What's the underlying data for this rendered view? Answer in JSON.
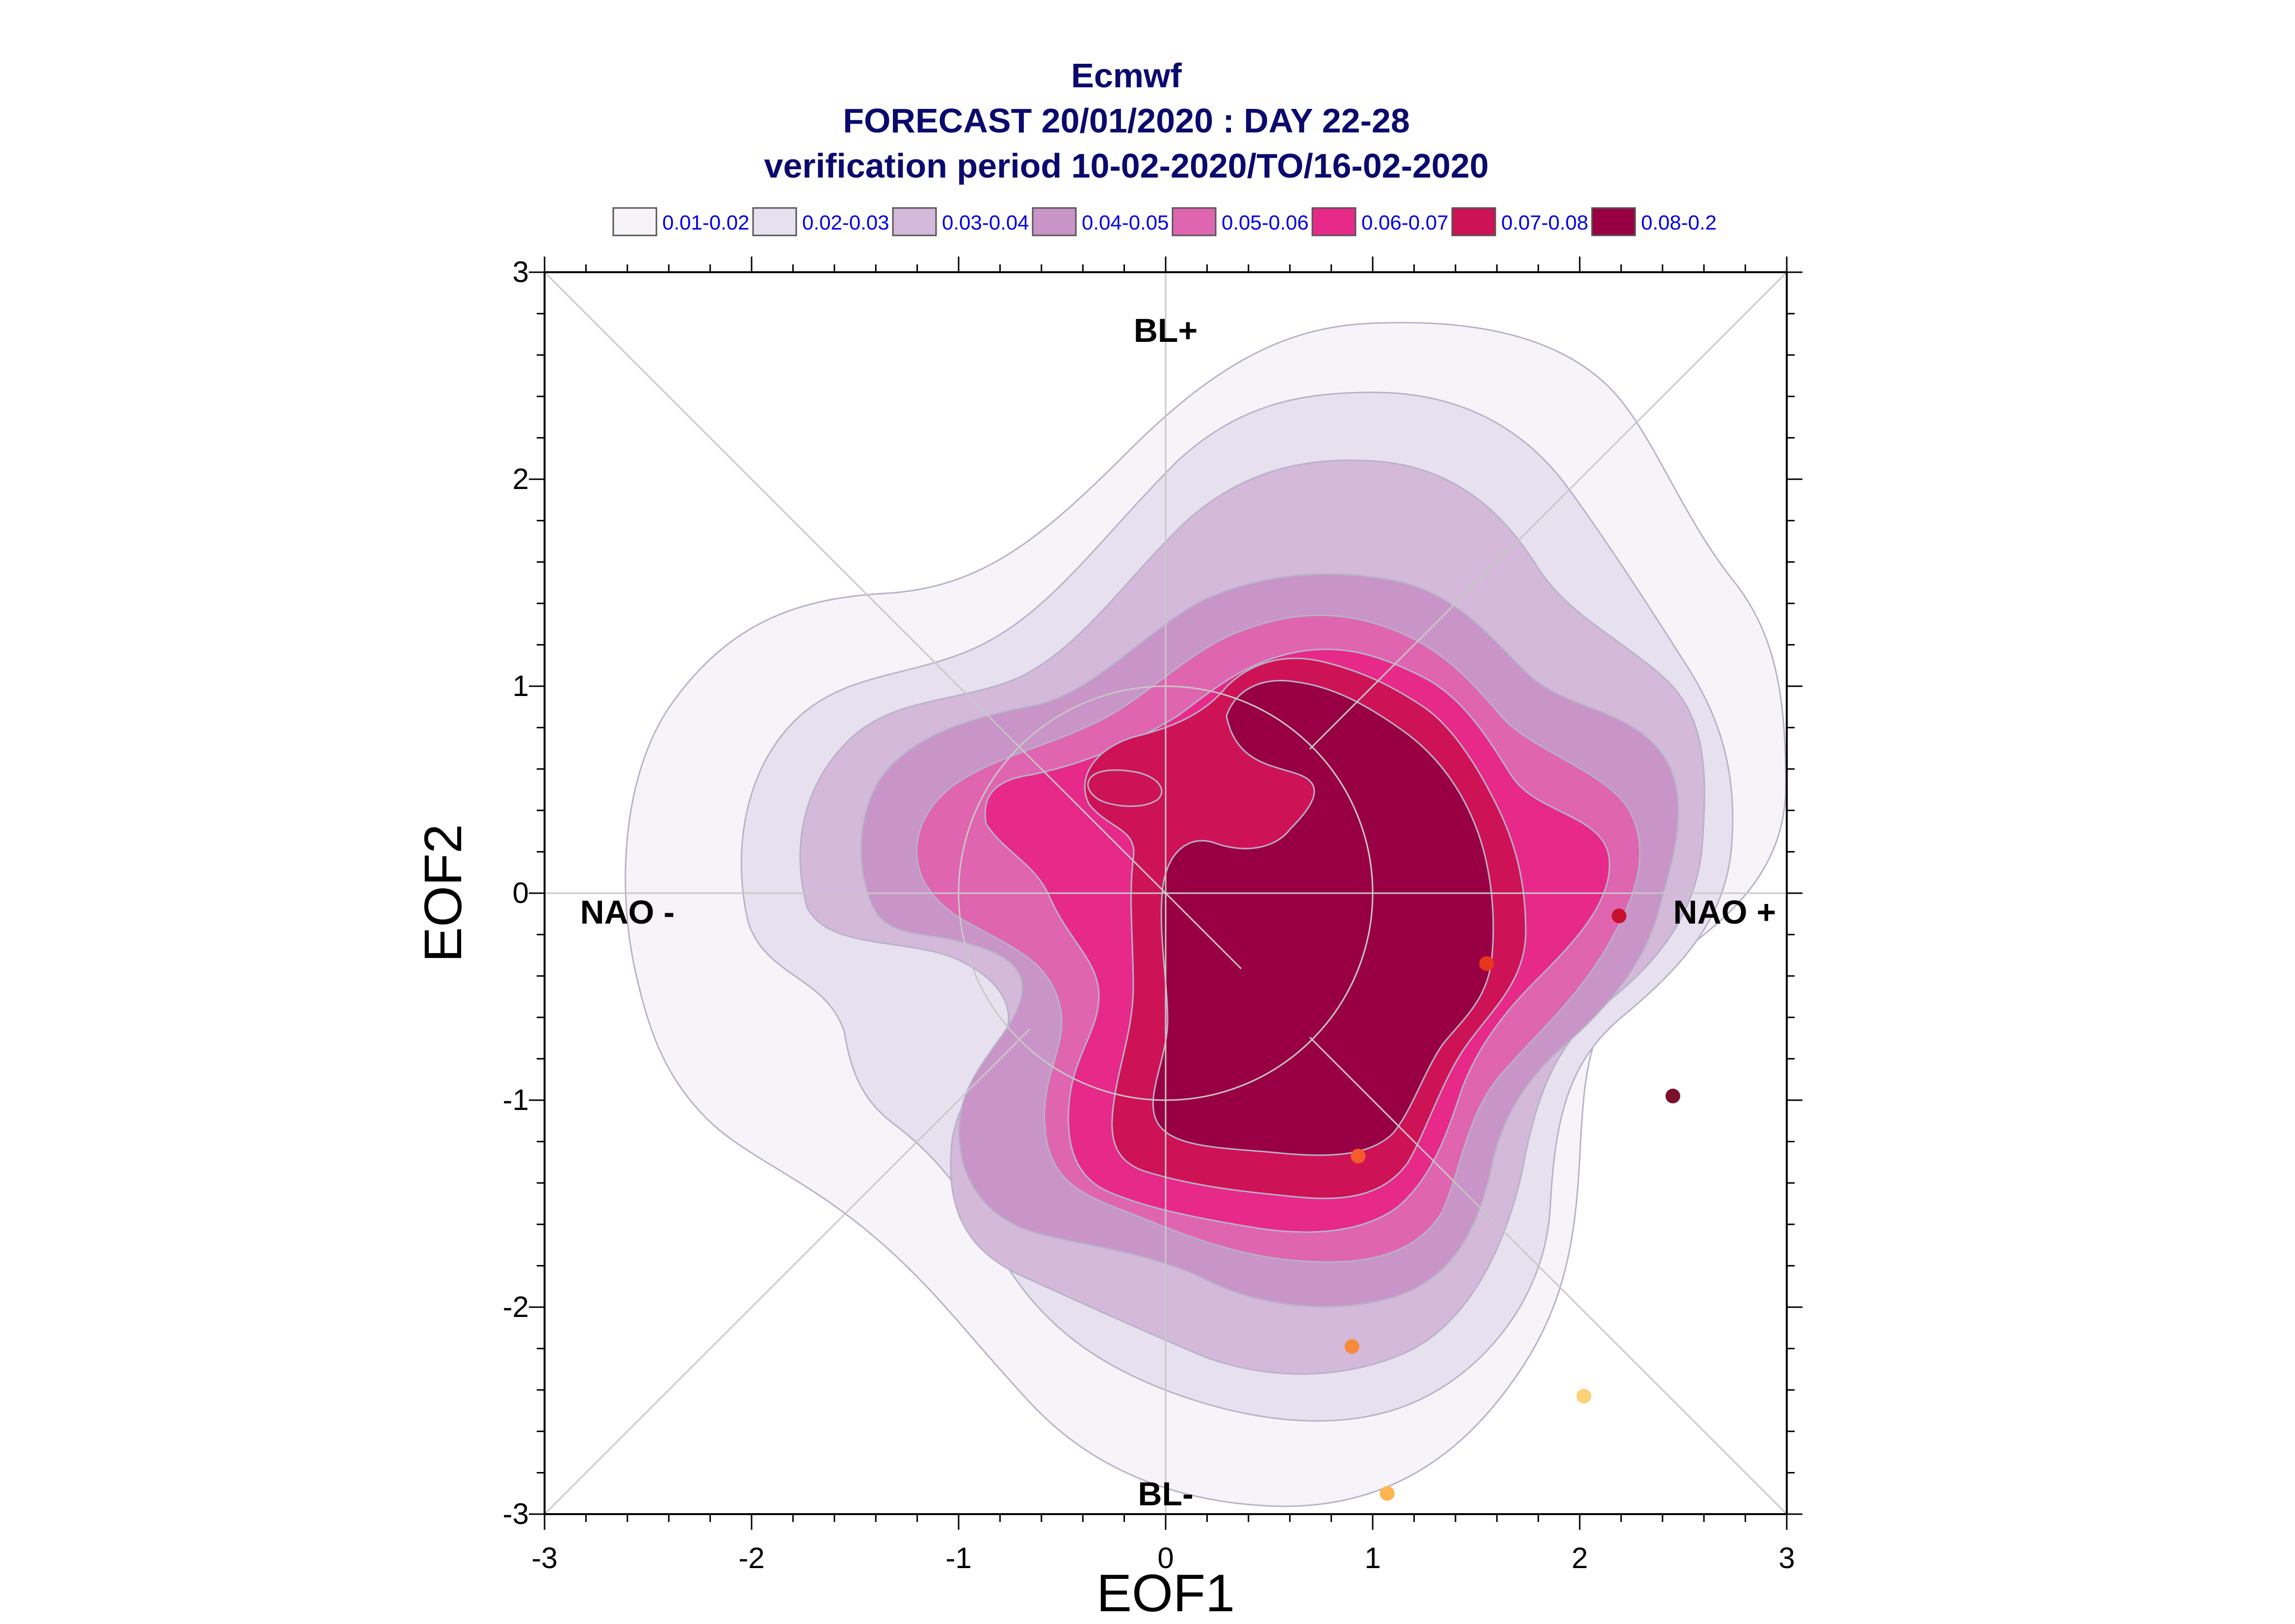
{
  "chart_data": {
    "type": "contour",
    "title_lines": [
      "Ecmwf",
      "FORECAST 20/01/2020 : DAY 22-28",
      "verification period 10-02-2020/TO/16-02-2020"
    ],
    "xlabel": "EOF1",
    "ylabel": "EOF2",
    "xlim": [
      -3,
      3
    ],
    "ylim": [
      -3,
      3
    ],
    "x_ticks": [
      "-3",
      "-2",
      "-1",
      "0",
      "1",
      "2",
      "3"
    ],
    "y_ticks": [
      "-3",
      "-2",
      "-1",
      "0",
      "1",
      "2",
      "3"
    ],
    "grid": false,
    "legend_position": "top",
    "legend": [
      {
        "label": "0.01-0.02",
        "color": "#f7f4f9"
      },
      {
        "label": "0.02-0.03",
        "color": "#e7e1ef"
      },
      {
        "label": "0.03-0.04",
        "color": "#d4b9da"
      },
      {
        "label": "0.04-0.05",
        "color": "#c994c7"
      },
      {
        "label": "0.05-0.06",
        "color": "#df65b0"
      },
      {
        "label": "0.06-0.07",
        "color": "#e7298a"
      },
      {
        "label": "0.07-0.08",
        "color": "#ce1256"
      },
      {
        "label": "0.08-0.2",
        "color": "#980043"
      }
    ],
    "regimes": [
      {
        "label": "BL+",
        "x": 0.0,
        "y": 2.72
      },
      {
        "label": "NAO -",
        "x": -2.6,
        "y": -0.09
      },
      {
        "label": "NAO +",
        "x": 2.7,
        "y": -0.09
      },
      {
        "label": "BL-",
        "x": 0.0,
        "y": -2.9
      }
    ],
    "points": [
      {
        "x": 2.19,
        "y": -0.11,
        "color": "#c8102e"
      },
      {
        "x": 1.55,
        "y": -0.34,
        "color": "#e8351e"
      },
      {
        "x": 2.45,
        "y": -0.98,
        "color": "#7a0f2e"
      },
      {
        "x": 0.93,
        "y": -1.27,
        "color": "#f55a2c"
      },
      {
        "x": 0.9,
        "y": -2.19,
        "color": "#f78b3c"
      },
      {
        "x": 2.02,
        "y": -2.43,
        "color": "#fdd07a"
      },
      {
        "x": 1.07,
        "y": -2.9,
        "color": "#fcb54f"
      }
    ]
  }
}
